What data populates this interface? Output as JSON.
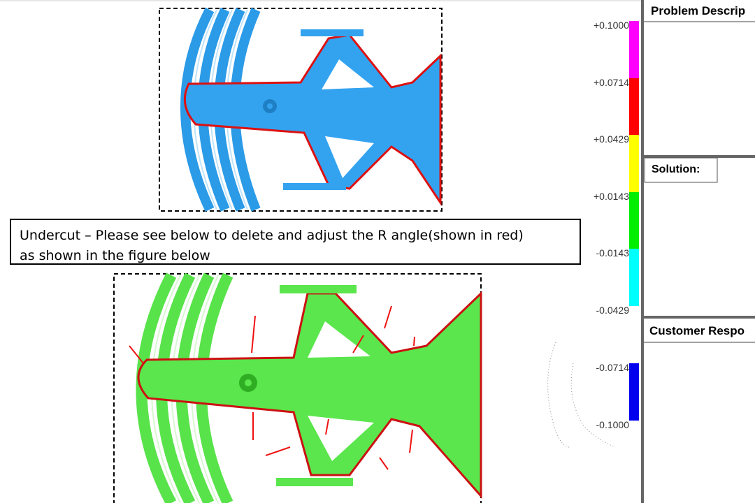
{
  "note": {
    "lines": [
      "Undercut – Please see below to delete and adjust the R angle(shown in red)",
      "as shown in the figure below"
    ]
  },
  "scale": {
    "labels": [
      "+0.1000",
      "+0.0714",
      "+0.0429",
      "+0.0143",
      "-0.0143",
      "-0.0429",
      "-0.0714",
      "-0.1000"
    ]
  },
  "panels": {
    "problem": "Problem Descrip",
    "solution": "Solution:",
    "customer": "Customer Respo"
  }
}
